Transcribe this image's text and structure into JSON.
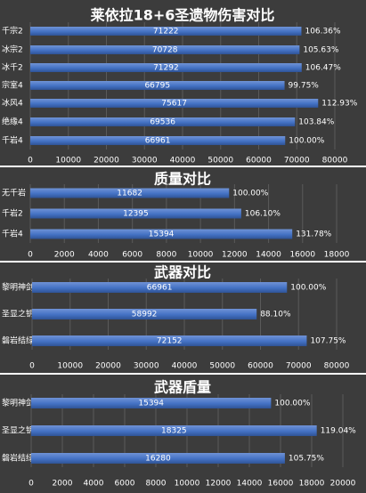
{
  "colors": {
    "background": "#3c3c3c",
    "panel": "#363636",
    "divider": "#ffffff",
    "bar": "#4472c4",
    "bar_highlight": "#6f93d6",
    "bar_shadow": "#2f5396",
    "text": "#ffffff",
    "gridline": "#5a5a5a"
  },
  "chart_data": [
    {
      "type": "bar",
      "orientation": "horizontal",
      "title": "莱依拉18+6圣遗物伤害对比",
      "categories": [
        "千宗2",
        "冰宗2",
        "冰千2",
        "宗室4",
        "冰风4",
        "绝缘4",
        "千岩4"
      ],
      "values": [
        71222,
        70728,
        71292,
        66795,
        75617,
        69536,
        66961
      ],
      "value_labels": [
        "71222",
        "70728",
        "71292",
        "66795",
        "75617",
        "69536",
        "66961"
      ],
      "percent_labels": [
        "106.36%",
        "105.63%",
        "106.47%",
        "99.75%",
        "112.93%",
        "103.84%",
        "100.00%"
      ],
      "xlim": [
        0,
        80000
      ],
      "xticks": [
        "0",
        "10000",
        "20000",
        "30000",
        "40000",
        "50000",
        "60000",
        "70000",
        "80000"
      ],
      "grid": true,
      "legend": "none"
    },
    {
      "type": "bar",
      "orientation": "horizontal",
      "title": "质量对比",
      "categories": [
        "无千岩",
        "千岩2",
        "千岩4"
      ],
      "values": [
        11682,
        12395,
        15394
      ],
      "value_labels": [
        "11682",
        "12395",
        "15394"
      ],
      "percent_labels": [
        "100.00%",
        "106.10%",
        "131.78%"
      ],
      "xlim": [
        0,
        18000
      ],
      "xticks": [
        "0",
        "2000",
        "4000",
        "6000",
        "8000",
        "10000",
        "12000",
        "14000",
        "16000",
        "18000"
      ],
      "grid": true,
      "legend": "none"
    },
    {
      "type": "bar",
      "orientation": "horizontal",
      "title": "武器对比",
      "categories": [
        "黎明神剑",
        "圣显之钥",
        "磐岩结绿"
      ],
      "values": [
        66961,
        58992,
        72152
      ],
      "value_labels": [
        "66961",
        "58992",
        "72152"
      ],
      "percent_labels": [
        "100.00%",
        "88.10%",
        "107.75%"
      ],
      "xlim": [
        0,
        80000
      ],
      "xticks": [
        "0",
        "10000",
        "20000",
        "30000",
        "40000",
        "50000",
        "60000",
        "70000",
        "80000"
      ],
      "grid": true,
      "legend": "none"
    },
    {
      "type": "bar",
      "orientation": "horizontal",
      "title": "武器盾量",
      "categories": [
        "黎明神剑",
        "圣显之钥",
        "磐岩结绿"
      ],
      "values": [
        15394,
        18325,
        16280
      ],
      "value_labels": [
        "15394",
        "18325",
        "16280"
      ],
      "percent_labels": [
        "100.00%",
        "119.04%",
        "105.75%"
      ],
      "xlim": [
        0,
        20000
      ],
      "xticks": [
        "0",
        "2000",
        "4000",
        "6000",
        "8000",
        "10000",
        "12000",
        "14000",
        "16000",
        "18000",
        "20000"
      ],
      "grid": true,
      "legend": "none"
    }
  ]
}
